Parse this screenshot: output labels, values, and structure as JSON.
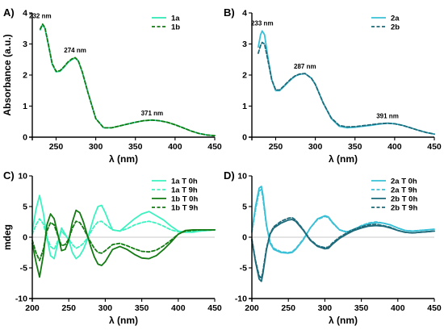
{
  "chart_data": [
    {
      "panel": "A)",
      "type": "line",
      "xlabel": "λ (nm)",
      "ylabel": "Absorbance (a.u.)",
      "xlim": [
        220,
        450
      ],
      "ylim": [
        0,
        4
      ],
      "xticks": [
        250,
        300,
        350,
        400,
        450
      ],
      "yticks": [
        0,
        1,
        2,
        3,
        4
      ],
      "legend": "top-right",
      "series": [
        {
          "name": "1a",
          "color": "#2ee8b4",
          "dash": "solid",
          "x": [
            230,
            233,
            236,
            240,
            245,
            250,
            255,
            260,
            265,
            270,
            274,
            278,
            283,
            290,
            300,
            310,
            320,
            330,
            340,
            350,
            360,
            371,
            380,
            390,
            400,
            410,
            420,
            430,
            440,
            450
          ],
          "y": [
            3.45,
            3.62,
            3.5,
            3.0,
            2.35,
            2.1,
            2.12,
            2.25,
            2.4,
            2.5,
            2.55,
            2.45,
            2.1,
            1.45,
            0.6,
            0.3,
            0.3,
            0.36,
            0.42,
            0.48,
            0.53,
            0.55,
            0.53,
            0.48,
            0.4,
            0.3,
            0.2,
            0.12,
            0.07,
            0.05
          ]
        },
        {
          "name": "1b",
          "color": "#137a13",
          "dash": "dashed",
          "x": [
            230,
            233,
            236,
            240,
            245,
            250,
            255,
            260,
            265,
            270,
            274,
            278,
            283,
            290,
            300,
            310,
            320,
            330,
            340,
            350,
            360,
            371,
            380,
            390,
            400,
            410,
            420,
            430,
            440,
            450
          ],
          "y": [
            3.48,
            3.64,
            3.52,
            3.02,
            2.37,
            2.12,
            2.14,
            2.27,
            2.42,
            2.52,
            2.56,
            2.46,
            2.1,
            1.45,
            0.6,
            0.3,
            0.3,
            0.36,
            0.42,
            0.48,
            0.53,
            0.55,
            0.53,
            0.48,
            0.4,
            0.3,
            0.2,
            0.12,
            0.07,
            0.05
          ]
        }
      ],
      "annotations": [
        {
          "text": "232 nm",
          "x": 232,
          "y": 3.62
        },
        {
          "text": "274 nm",
          "x": 274,
          "y": 2.55
        },
        {
          "text": "371 nm",
          "x": 371,
          "y": 0.55
        }
      ]
    },
    {
      "panel": "B)",
      "type": "line",
      "xlabel": "λ (nm)",
      "ylabel": "",
      "xlim": [
        220,
        450
      ],
      "ylim": [
        0,
        4
      ],
      "xticks": [
        250,
        300,
        350,
        400,
        450
      ],
      "yticks": [
        0,
        1,
        2,
        3,
        4
      ],
      "legend": "top-right",
      "series": [
        {
          "name": "2a",
          "color": "#3ac0d6",
          "dash": "solid",
          "x": [
            228,
            231,
            233,
            236,
            240,
            245,
            250,
            255,
            260,
            265,
            270,
            275,
            280,
            287,
            295,
            300,
            310,
            320,
            330,
            340,
            350,
            360,
            370,
            380,
            391,
            400,
            410,
            420,
            430,
            440,
            450
          ],
          "y": [
            2.9,
            3.3,
            3.42,
            3.3,
            2.6,
            1.85,
            1.5,
            1.5,
            1.62,
            1.75,
            1.87,
            1.97,
            2.02,
            2.05,
            1.9,
            1.7,
            1.1,
            0.6,
            0.35,
            0.3,
            0.32,
            0.35,
            0.38,
            0.42,
            0.45,
            0.43,
            0.38,
            0.3,
            0.22,
            0.15,
            0.1
          ]
        },
        {
          "name": "2b",
          "color": "#1d6a7a",
          "dash": "dashed",
          "x": [
            228,
            231,
            233,
            236,
            240,
            245,
            250,
            255,
            260,
            265,
            270,
            275,
            280,
            287,
            295,
            300,
            310,
            320,
            330,
            340,
            350,
            360,
            370,
            380,
            391,
            400,
            410,
            420,
            430,
            440,
            450
          ],
          "y": [
            2.7,
            2.95,
            3.05,
            3.0,
            2.5,
            1.85,
            1.52,
            1.52,
            1.64,
            1.77,
            1.89,
            1.98,
            2.03,
            2.05,
            1.9,
            1.7,
            1.1,
            0.62,
            0.38,
            0.33,
            0.34,
            0.37,
            0.4,
            0.43,
            0.45,
            0.43,
            0.38,
            0.3,
            0.22,
            0.15,
            0.1
          ]
        }
      ],
      "annotations": [
        {
          "text": "233 nm",
          "x": 233,
          "y": 3.42
        },
        {
          "text": "287 nm",
          "x": 287,
          "y": 2.05
        },
        {
          "text": "391 nm",
          "x": 391,
          "y": 0.45
        }
      ]
    },
    {
      "panel": "C)",
      "type": "line",
      "xlabel": "λ (nm)",
      "ylabel": "mdeg",
      "xlim": [
        200,
        450
      ],
      "ylim": [
        -10,
        10
      ],
      "xticks": [
        200,
        250,
        300,
        350,
        400,
        450
      ],
      "yticks": [
        -10,
        -5,
        0,
        5,
        10
      ],
      "legend": "top-right",
      "series": [
        {
          "name": "1a  T 0h",
          "color": "#3df2c0",
          "dash": "solid",
          "x": [
            200,
            205,
            210,
            215,
            220,
            225,
            230,
            235,
            240,
            245,
            250,
            255,
            260,
            265,
            270,
            275,
            280,
            285,
            290,
            295,
            300,
            305,
            310,
            320,
            330,
            340,
            350,
            360,
            370,
            380,
            390,
            400,
            410,
            420,
            430,
            440,
            450
          ],
          "y": [
            1,
            4.5,
            6.8,
            4,
            0,
            -3,
            -3.5,
            -1,
            1.5,
            0.5,
            -0.5,
            -2.5,
            -3.5,
            -3,
            -2,
            -0.5,
            1.5,
            3.5,
            5,
            5.2,
            4,
            2.5,
            1.2,
            1,
            2,
            3,
            3.8,
            4.2,
            3.5,
            2.8,
            1.8,
            1.0,
            0.8,
            0.8,
            1,
            1.1,
            1.2
          ]
        },
        {
          "name": "1a  T 9h",
          "color": "#3df2c0",
          "dash": "dashed",
          "x": [
            200,
            205,
            210,
            215,
            220,
            225,
            230,
            235,
            240,
            245,
            250,
            255,
            260,
            265,
            270,
            275,
            280,
            285,
            290,
            295,
            300,
            310,
            320,
            330,
            340,
            350,
            360,
            370,
            380,
            390,
            400,
            410,
            420,
            430,
            440,
            450
          ],
          "y": [
            0.5,
            2,
            3,
            2.2,
            0,
            -1.5,
            -2,
            -0.6,
            1,
            0.3,
            -0.3,
            -1.2,
            -1.8,
            -1.5,
            -1,
            -0.2,
            0.8,
            1.8,
            2.5,
            2.6,
            2.1,
            1.2,
            1,
            1.4,
            2,
            2.4,
            2.6,
            2.3,
            1.8,
            1.2,
            0.9,
            0.9,
            1,
            1,
            1.1,
            1.2
          ]
        },
        {
          "name": "1b  T 0h",
          "color": "#137a13",
          "dash": "solid",
          "x": [
            200,
            205,
            210,
            215,
            220,
            225,
            230,
            235,
            240,
            245,
            250,
            255,
            260,
            265,
            270,
            275,
            280,
            285,
            290,
            295,
            300,
            310,
            320,
            330,
            340,
            350,
            360,
            370,
            380,
            390,
            400,
            410,
            420,
            430,
            440,
            450
          ],
          "y": [
            -1,
            -4,
            -6.5,
            -3,
            2,
            3.8,
            3,
            0.5,
            -2.2,
            -2,
            -0.5,
            2.5,
            4.4,
            4,
            2.5,
            0.5,
            -1.5,
            -3.2,
            -4.4,
            -4.6,
            -4,
            -2,
            -1.5,
            -2,
            -2.8,
            -3.4,
            -3.5,
            -3,
            -2,
            -0.8,
            0.5,
            1.1,
            1.2,
            1.2,
            1.2,
            1.2
          ]
        },
        {
          "name": "1b  T 9h",
          "color": "#137a13",
          "dash": "dashed",
          "x": [
            200,
            205,
            210,
            215,
            220,
            225,
            230,
            235,
            240,
            245,
            250,
            255,
            260,
            265,
            270,
            275,
            280,
            285,
            290,
            295,
            300,
            310,
            320,
            330,
            340,
            350,
            360,
            370,
            380,
            390,
            400,
            410,
            420,
            430,
            440,
            450
          ],
          "y": [
            -0.5,
            -2.5,
            -3.8,
            -2,
            1,
            2.4,
            2,
            0.3,
            -1.4,
            -1.2,
            -0.3,
            1.5,
            2.6,
            2.4,
            1.5,
            0.3,
            -0.8,
            -1.8,
            -2.5,
            -2.6,
            -2.2,
            -1.2,
            -1,
            -1.4,
            -1.9,
            -2.3,
            -2.4,
            -2.1,
            -1.4,
            -0.5,
            0.5,
            1,
            1.1,
            1.2,
            1.2,
            1.2
          ]
        }
      ]
    },
    {
      "panel": "D)",
      "type": "line",
      "xlabel": "λ (nm)",
      "ylabel": "",
      "xlim": [
        200,
        450
      ],
      "ylim": [
        -10,
        10
      ],
      "xticks": [
        200,
        250,
        300,
        350,
        400,
        450
      ],
      "yticks": [
        -10,
        -5,
        0,
        5,
        10
      ],
      "legend": "top-right",
      "series": [
        {
          "name": "2a  T 0h",
          "color": "#3ac0d6",
          "dash": "solid",
          "x": [
            200,
            205,
            210,
            213,
            215,
            220,
            225,
            230,
            240,
            250,
            255,
            260,
            270,
            280,
            290,
            300,
            305,
            310,
            320,
            330,
            340,
            350,
            360,
            370,
            380,
            390,
            400,
            410,
            420,
            430,
            440,
            450
          ],
          "y": [
            1,
            5,
            8,
            8.3,
            7,
            2,
            -1,
            -2,
            -2.5,
            -2.6,
            -2.5,
            -2,
            -0.5,
            1.5,
            3,
            3.5,
            3.3,
            2.5,
            1.2,
            0.8,
            1.2,
            1.8,
            2.2,
            2.4,
            2.3,
            2,
            1.5,
            1.1,
            1,
            1.1,
            1.2,
            1.3
          ]
        },
        {
          "name": "2a  T 9h",
          "color": "#3ac0d6",
          "dash": "dashed",
          "x": [
            200,
            205,
            210,
            213,
            215,
            220,
            225,
            230,
            240,
            250,
            255,
            260,
            270,
            280,
            290,
            300,
            305,
            310,
            320,
            330,
            340,
            350,
            360,
            370,
            380,
            390,
            400,
            410,
            420,
            430,
            440,
            450
          ],
          "y": [
            0.8,
            4.5,
            7.5,
            7.8,
            6.5,
            1.8,
            -0.8,
            -1.8,
            -2.4,
            -2.5,
            -2.4,
            -1.9,
            -0.4,
            1.5,
            2.9,
            3.4,
            3.2,
            2.4,
            1.2,
            0.9,
            1.3,
            1.9,
            2.3,
            2.5,
            2.3,
            2,
            1.5,
            1.1,
            1,
            1.1,
            1.2,
            1.3
          ]
        },
        {
          "name": "2b  T 0h",
          "color": "#1d6a7a",
          "dash": "solid",
          "x": [
            200,
            205,
            210,
            213,
            215,
            220,
            225,
            230,
            240,
            250,
            255,
            260,
            270,
            280,
            290,
            300,
            305,
            310,
            320,
            330,
            340,
            350,
            360,
            370,
            380,
            390,
            400,
            410,
            420,
            430,
            440,
            450
          ],
          "y": [
            -0.5,
            -4,
            -6.8,
            -7.2,
            -6,
            -2,
            0.5,
            1.5,
            2.3,
            2.8,
            2.9,
            2.6,
            1.2,
            -0.5,
            -1.5,
            -1.9,
            -1.8,
            -1.2,
            -0.2,
            0.5,
            1.1,
            1.5,
            1.8,
            1.9,
            1.8,
            1.5,
            1.1,
            0.8,
            0.7,
            0.8,
            0.9,
            1
          ]
        },
        {
          "name": "2b  T 9h",
          "color": "#1d6a7a",
          "dash": "dashed",
          "x": [
            200,
            205,
            210,
            213,
            215,
            220,
            225,
            230,
            240,
            250,
            255,
            260,
            270,
            280,
            290,
            300,
            305,
            310,
            320,
            330,
            340,
            350,
            360,
            370,
            380,
            390,
            400,
            410,
            420,
            430,
            440,
            450
          ],
          "y": [
            -0.3,
            -3.8,
            -6.3,
            -6.7,
            -5.6,
            -1.8,
            0.6,
            1.7,
            2.6,
            3.1,
            3.2,
            2.8,
            1.3,
            -0.4,
            -1.4,
            -1.7,
            -1.6,
            -1,
            0,
            0.7,
            1.3,
            1.7,
            2,
            2.1,
            1.9,
            1.6,
            1.1,
            0.8,
            0.7,
            0.8,
            0.9,
            1
          ]
        }
      ]
    }
  ]
}
